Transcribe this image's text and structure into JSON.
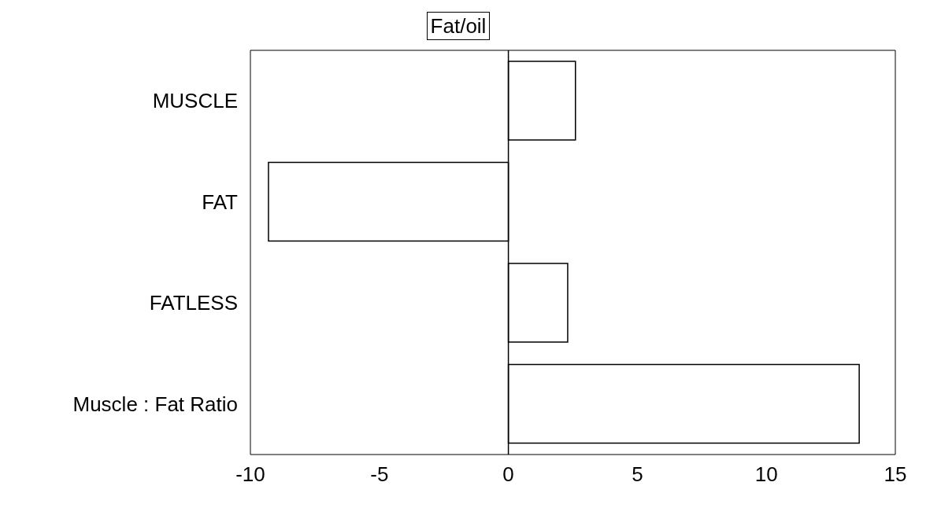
{
  "chart_data": {
    "type": "bar",
    "orientation": "horizontal",
    "categories": [
      "MUSCLE",
      "FAT",
      "FATLESS",
      "Muscle : Fat Ratio"
    ],
    "series": [
      {
        "name": "Fat/oil",
        "color": "#ffffff",
        "values": [
          2.6,
          -9.3,
          2.3,
          13.6
        ]
      }
    ],
    "xlim": [
      -10,
      15
    ],
    "xticks": [
      -10,
      -5,
      0,
      5,
      10,
      15
    ],
    "grid": false,
    "legend": "top",
    "ref_lines": [
      {
        "axis": "x",
        "value": 0,
        "color": "#000000"
      }
    ]
  }
}
